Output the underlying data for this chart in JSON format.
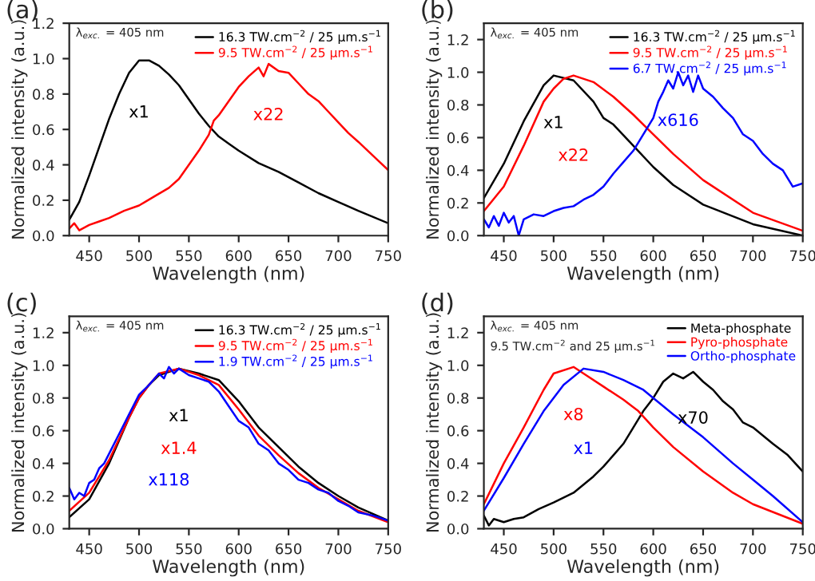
{
  "chart_data": [
    {
      "type": "line",
      "xlabel": "Wavelength (nm)",
      "ylabel": "Normalized intensity (a.u.)",
      "xlim": [
        430,
        750
      ],
      "xticks": [
        450,
        500,
        550,
        600,
        650,
        700,
        750
      ],
      "ylim": [
        0,
        1.2
      ],
      "yticks": [
        {
          "value": 0,
          "label": "0.0"
        },
        {
          "value": 0.2,
          "label": "0.2"
        },
        {
          "value": 0.4,
          "label": "0.4"
        },
        {
          "value": 0.6,
          "label": "0.6"
        },
        {
          "value": 0.8,
          "label": "0.8"
        },
        {
          "value": 1.0,
          "label": "1.0"
        },
        {
          "value": 1.2,
          "label": "1.2"
        }
      ],
      "legend": "top right",
      "annotations": [
        "x1",
        "x22",
        "(a)",
        "λ$_{exc.}$ = 405 nm"
      ],
      "series": [
        {
          "name": "16.3 TW.cm$^{−2}$ / 25 µm.s$^{−1}$",
          "color": "#000000",
          "x": [
            430,
            440,
            450,
            460,
            470,
            480,
            490,
            500,
            510,
            520,
            530,
            540,
            550,
            560,
            570,
            580,
            590,
            600,
            620,
            640,
            660,
            680,
            700,
            720,
            750
          ],
          "values": [
            0.09,
            0.19,
            0.34,
            0.5,
            0.66,
            0.8,
            0.92,
            0.99,
            0.99,
            0.96,
            0.91,
            0.85,
            0.77,
            0.69,
            0.62,
            0.56,
            0.52,
            0.48,
            0.41,
            0.36,
            0.3,
            0.24,
            0.19,
            0.14,
            0.07
          ]
        },
        {
          "name": "9.5 TW.cm$^{−2}$ / 25 µm.s$^{−1}$",
          "color": "#ff0000",
          "x": [
            430,
            435,
            440,
            450,
            460,
            470,
            485,
            500,
            515,
            530,
            540,
            550,
            560,
            570,
            575,
            580,
            590,
            600,
            610,
            620,
            625,
            630,
            640,
            650,
            660,
            670,
            680,
            690,
            700,
            710,
            720,
            735,
            750
          ],
          "values": [
            0.04,
            0.07,
            0.03,
            0.06,
            0.08,
            0.1,
            0.14,
            0.17,
            0.22,
            0.27,
            0.32,
            0.4,
            0.48,
            0.57,
            0.65,
            0.68,
            0.76,
            0.84,
            0.9,
            0.95,
            0.9,
            0.97,
            0.93,
            0.92,
            0.86,
            0.8,
            0.76,
            0.7,
            0.64,
            0.58,
            0.53,
            0.45,
            0.37
          ]
        }
      ]
    },
    {
      "type": "line",
      "xlabel": "Wavelength (nm)",
      "ylabel": "Normalized intensity (a.u.)",
      "xlim": [
        430,
        750
      ],
      "xticks": [
        450,
        500,
        550,
        600,
        650,
        700,
        750
      ],
      "ylim": [
        0,
        1.3
      ],
      "yticks": [
        {
          "value": 0,
          "label": "0.0"
        },
        {
          "value": 0.2,
          "label": "0.2"
        },
        {
          "value": 0.4,
          "label": "0.4"
        },
        {
          "value": 0.6,
          "label": "0.6"
        },
        {
          "value": 0.8,
          "label": "0.8"
        },
        {
          "value": 1.0,
          "label": "1.0"
        },
        {
          "value": 1.2,
          "label": "1.2"
        }
      ],
      "legend": "top right",
      "annotations": [
        "x1",
        "x22",
        "x616",
        "(b)",
        "λ$_{exc.}$ = 405 nm"
      ],
      "series": [
        {
          "name": "16.3 TW.cm$^{−2}$ / 25 µm.s$^{−1}$",
          "color": "#000000",
          "x": [
            430,
            450,
            470,
            490,
            500,
            520,
            540,
            550,
            560,
            580,
            600,
            620,
            650,
            700,
            750
          ],
          "values": [
            0.23,
            0.44,
            0.7,
            0.92,
            0.98,
            0.95,
            0.82,
            0.72,
            0.68,
            0.55,
            0.42,
            0.31,
            0.19,
            0.07,
            0.0
          ]
        },
        {
          "name": "9.5 TW.cm$^{−2}$ / 25 µm.s$^{−1}$",
          "color": "#ff0000",
          "x": [
            430,
            450,
            470,
            490,
            500,
            510,
            520,
            540,
            560,
            580,
            600,
            620,
            650,
            700,
            750
          ],
          "values": [
            0.15,
            0.3,
            0.55,
            0.82,
            0.9,
            0.96,
            0.98,
            0.94,
            0.85,
            0.74,
            0.62,
            0.5,
            0.34,
            0.14,
            0.03
          ]
        },
        {
          "name": "6.7 TW.cm$^{−2}$ / 25 µm.s$^{−1}$",
          "color": "#0000ff",
          "x": [
            430,
            435,
            440,
            445,
            450,
            455,
            460,
            465,
            470,
            480,
            490,
            500,
            510,
            520,
            530,
            540,
            550,
            560,
            570,
            580,
            590,
            600,
            605,
            610,
            615,
            620,
            625,
            630,
            635,
            640,
            645,
            650,
            660,
            670,
            680,
            690,
            700,
            710,
            720,
            730,
            740,
            750
          ],
          "values": [
            0.1,
            0.05,
            0.12,
            0.06,
            0.14,
            0.08,
            0.12,
            0.0,
            0.1,
            0.13,
            0.12,
            0.15,
            0.17,
            0.18,
            0.22,
            0.25,
            0.3,
            0.38,
            0.45,
            0.52,
            0.62,
            0.72,
            0.82,
            0.88,
            0.95,
            0.9,
            1.0,
            0.92,
            0.98,
            0.88,
            0.98,
            0.9,
            0.85,
            0.78,
            0.72,
            0.62,
            0.58,
            0.5,
            0.44,
            0.4,
            0.3,
            0.32
          ]
        }
      ]
    },
    {
      "type": "line",
      "xlabel": "Wavelength (nm)",
      "ylabel": "Normalized intensity (a.u.)",
      "xlim": [
        430,
        750
      ],
      "xticks": [
        450,
        500,
        550,
        600,
        650,
        700,
        750
      ],
      "ylim": [
        0,
        1.3
      ],
      "yticks": [
        {
          "value": 0,
          "label": "0.0"
        },
        {
          "value": 0.2,
          "label": "0.2"
        },
        {
          "value": 0.4,
          "label": "0.4"
        },
        {
          "value": 0.6,
          "label": "0.6"
        },
        {
          "value": 0.8,
          "label": "0.8"
        },
        {
          "value": 1.0,
          "label": "1.0"
        },
        {
          "value": 1.2,
          "label": "1.2"
        }
      ],
      "legend": "top right",
      "annotations": [
        "x1",
        "x1.4",
        "x118",
        "(c)",
        "λ$_{exc.}$ = 405 nm"
      ],
      "series": [
        {
          "name": "16.3 TW.cm$^{−2}$ / 25 µm.s$^{−1}$",
          "color": "#000000",
          "x": [
            430,
            450,
            470,
            490,
            500,
            510,
            520,
            540,
            560,
            580,
            600,
            620,
            640,
            660,
            680,
            700,
            720,
            750
          ],
          "values": [
            0.07,
            0.18,
            0.4,
            0.68,
            0.8,
            0.88,
            0.94,
            0.98,
            0.95,
            0.91,
            0.78,
            0.62,
            0.5,
            0.38,
            0.28,
            0.2,
            0.13,
            0.05
          ]
        },
        {
          "name": "9.5 TW.cm$^{−2}$ / 25 µm.s$^{−1}$",
          "color": "#ff0000",
          "x": [
            430,
            450,
            470,
            490,
            500,
            510,
            520,
            540,
            560,
            580,
            600,
            620,
            640,
            660,
            680,
            700,
            720,
            750
          ],
          "values": [
            0.11,
            0.22,
            0.42,
            0.68,
            0.8,
            0.88,
            0.95,
            0.98,
            0.94,
            0.88,
            0.73,
            0.57,
            0.45,
            0.34,
            0.25,
            0.18,
            0.11,
            0.04
          ]
        },
        {
          "name": "1.9 TW.cm$^{−2}$ / 25 µm.s$^{−1}$",
          "color": "#0000ff",
          "x": [
            430,
            435,
            440,
            445,
            450,
            455,
            460,
            465,
            470,
            480,
            490,
            500,
            510,
            520,
            525,
            530,
            535,
            540,
            550,
            560,
            570,
            580,
            590,
            600,
            610,
            620,
            630,
            640,
            650,
            660,
            670,
            680,
            690,
            700,
            710,
            720,
            735,
            750
          ],
          "values": [
            0.25,
            0.18,
            0.22,
            0.2,
            0.28,
            0.3,
            0.37,
            0.4,
            0.46,
            0.58,
            0.7,
            0.82,
            0.88,
            0.95,
            0.92,
            0.99,
            0.95,
            0.98,
            0.94,
            0.92,
            0.9,
            0.84,
            0.75,
            0.66,
            0.62,
            0.52,
            0.48,
            0.4,
            0.36,
            0.3,
            0.28,
            0.24,
            0.22,
            0.17,
            0.14,
            0.1,
            0.08,
            0.05
          ]
        }
      ]
    },
    {
      "type": "line",
      "xlabel": "Wavelength (nm)",
      "ylabel": "Normalized intensity (a.u.)",
      "xlim": [
        430,
        750
      ],
      "xticks": [
        450,
        500,
        550,
        600,
        650,
        700,
        750
      ],
      "ylim": [
        0,
        1.3
      ],
      "yticks": [
        {
          "value": 0,
          "label": "0.0"
        },
        {
          "value": 0.2,
          "label": "0.2"
        },
        {
          "value": 0.4,
          "label": "0.4"
        },
        {
          "value": 0.6,
          "label": "0.6"
        },
        {
          "value": 0.8,
          "label": "0.8"
        },
        {
          "value": 1.0,
          "label": "1.0"
        },
        {
          "value": 1.2,
          "label": "1.2"
        }
      ],
      "legend": "top right",
      "annotations": [
        "x70",
        "x8",
        "x1",
        "(d)",
        "λ$_{exc.}$ = 405 nm",
        "9.5 TW.cm$^{−2}$ and 25 µm.s$^{−1}$"
      ],
      "series": [
        {
          "name": "Meta-phosphate",
          "color": "#000000",
          "x": [
            430,
            435,
            440,
            450,
            460,
            470,
            485,
            500,
            520,
            540,
            550,
            560,
            570,
            580,
            590,
            600,
            610,
            620,
            630,
            640,
            650,
            660,
            670,
            680,
            690,
            700,
            720,
            735,
            750
          ],
          "values": [
            0.08,
            0.02,
            0.06,
            0.04,
            0.06,
            0.07,
            0.12,
            0.16,
            0.22,
            0.32,
            0.38,
            0.45,
            0.52,
            0.62,
            0.72,
            0.8,
            0.9,
            0.95,
            0.92,
            0.96,
            0.9,
            0.85,
            0.78,
            0.73,
            0.65,
            0.62,
            0.52,
            0.45,
            0.35
          ]
        },
        {
          "name": "Pyro-phosphate",
          "color": "#ff0000",
          "x": [
            430,
            450,
            470,
            490,
            500,
            520,
            530,
            550,
            570,
            585,
            600,
            620,
            650,
            680,
            700,
            750
          ],
          "values": [
            0.15,
            0.4,
            0.62,
            0.85,
            0.95,
            0.99,
            0.95,
            0.87,
            0.79,
            0.72,
            0.62,
            0.5,
            0.35,
            0.22,
            0.15,
            0.03
          ]
        },
        {
          "name": "Ortho-phosphate",
          "color": "#0000ff",
          "x": [
            430,
            450,
            470,
            490,
            510,
            530,
            550,
            570,
            590,
            600,
            620,
            650,
            680,
            700,
            720,
            750
          ],
          "values": [
            0.11,
            0.31,
            0.52,
            0.72,
            0.88,
            0.98,
            0.96,
            0.91,
            0.85,
            0.8,
            0.7,
            0.56,
            0.4,
            0.3,
            0.2,
            0.04
          ]
        }
      ]
    }
  ]
}
